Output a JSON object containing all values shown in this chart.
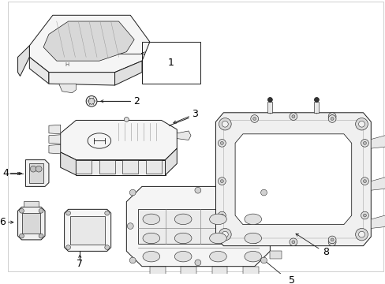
{
  "background_color": "#ffffff",
  "line_color": "#1a1a1a",
  "label_color": "#000000",
  "fig_width": 4.89,
  "fig_height": 3.6,
  "dpi": 100,
  "border_color": "#aaaaaa",
  "part_fill": "#ffffff",
  "part_shade": "#e8e8e8",
  "part_dark": "#cccccc"
}
